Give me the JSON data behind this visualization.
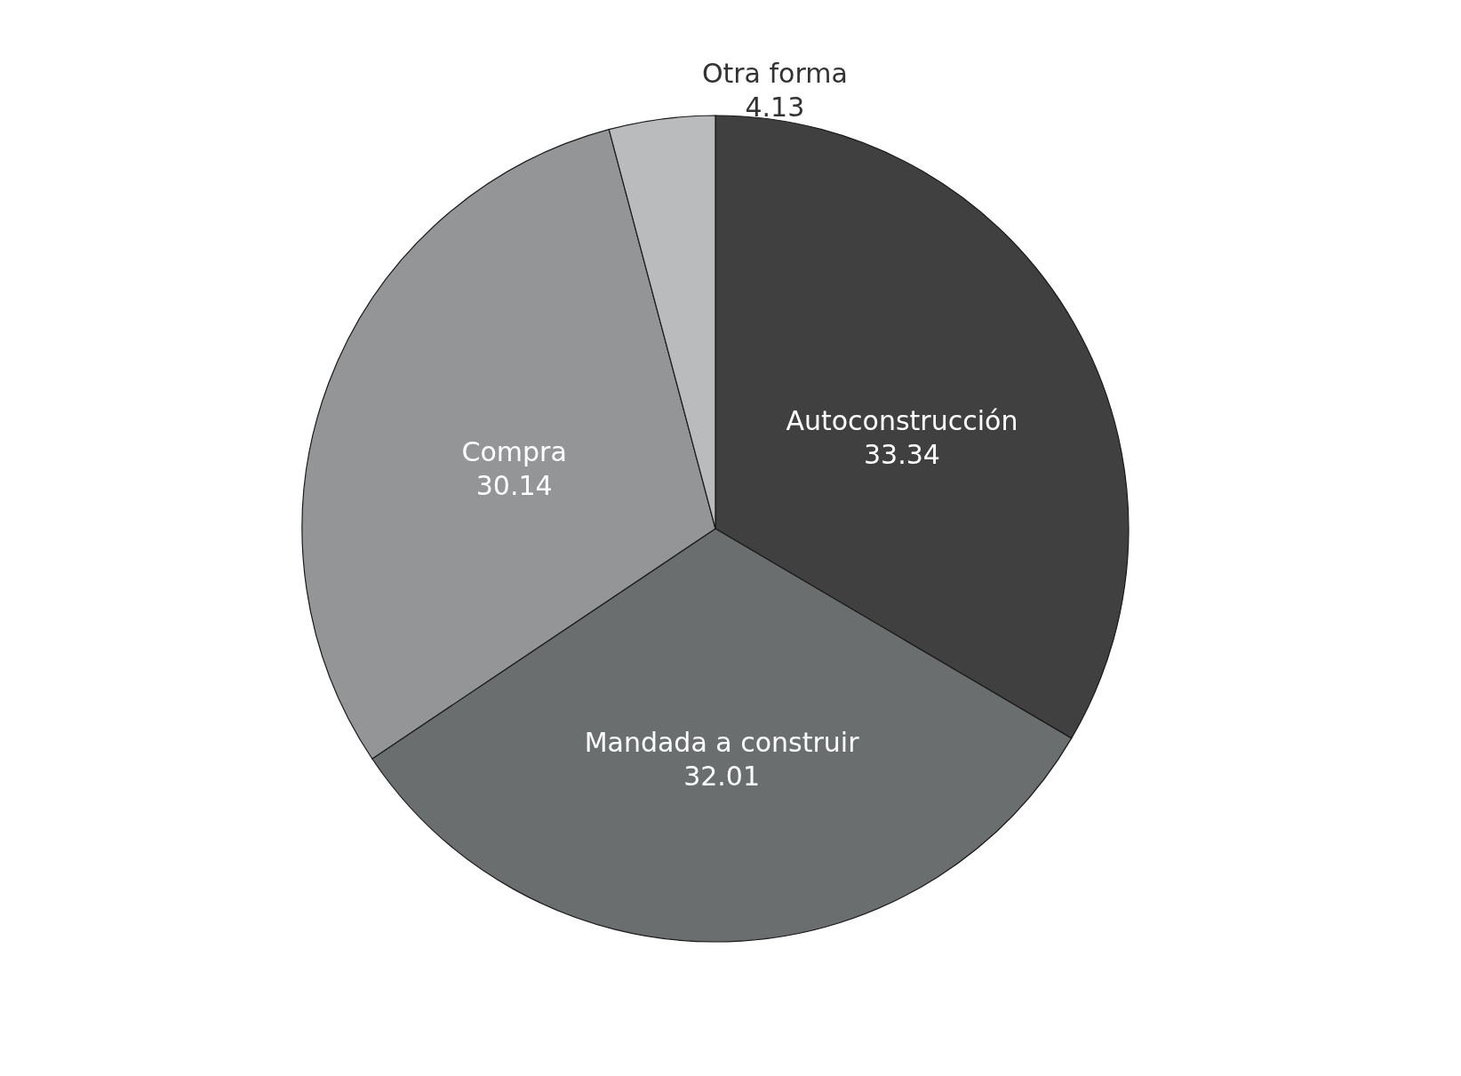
{
  "chart_data": {
    "type": "pie",
    "categories": [
      "Autoconstrucción",
      "Mandada a construir",
      "Compra",
      "Otra forma"
    ],
    "values": [
      33.34,
      32.01,
      30.14,
      4.13
    ],
    "colors": [
      "#404040",
      "#6b6e6f",
      "#939596",
      "#b9bbbc"
    ],
    "data_labels": true
  }
}
